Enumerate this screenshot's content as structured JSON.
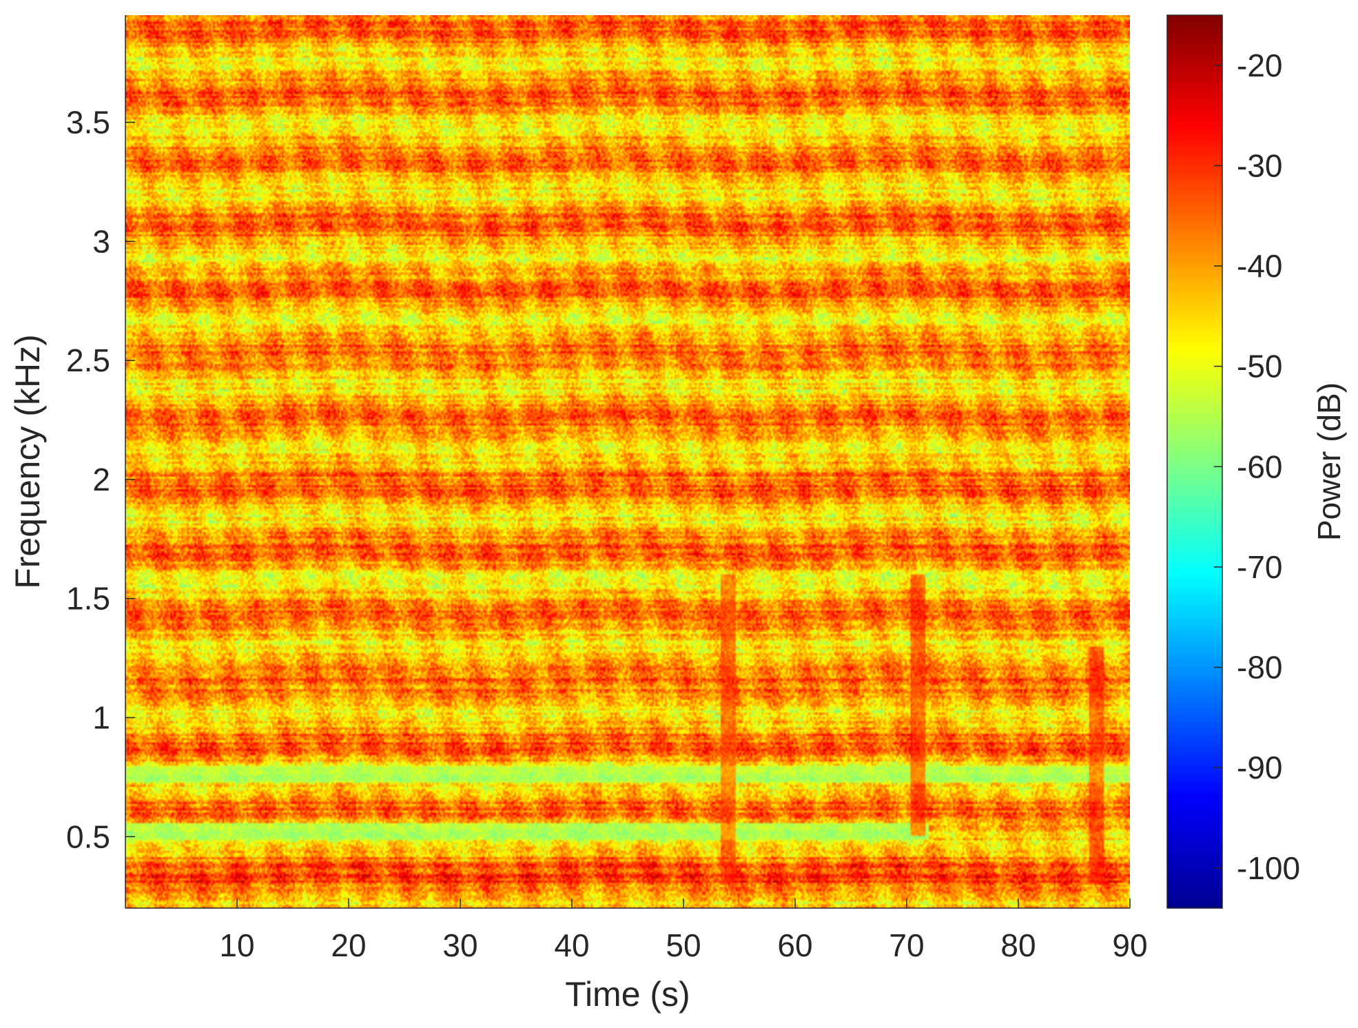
{
  "chart_data": {
    "type": "heatmap",
    "title": "",
    "xlabel": "Time (s)",
    "ylabel": "Frequency (kHz)",
    "xlim": [
      0,
      90
    ],
    "ylim": [
      0.2,
      3.95
    ],
    "xticks": [
      10,
      20,
      30,
      40,
      50,
      60,
      70,
      80,
      90
    ],
    "xtick_labels": [
      "10",
      "20",
      "30",
      "40",
      "50",
      "60",
      "70",
      "80",
      "90"
    ],
    "yticks": [
      0.5,
      1,
      1.5,
      2,
      2.5,
      3,
      3.5
    ],
    "ytick_labels": [
      "0.5",
      "1",
      "1.5",
      "2",
      "2.5",
      "3",
      "3.5"
    ],
    "colorbar": {
      "label": "Power (dB)",
      "colormap": "jet",
      "clim": [
        -104,
        -15
      ],
      "ticks": [
        -20,
        -30,
        -40,
        -50,
        -60,
        -70,
        -80,
        -90,
        -100
      ],
      "tick_labels": [
        "-20",
        "-30",
        "-40",
        "-50",
        "-60",
        "-70",
        "-80",
        "-90",
        "-100"
      ]
    },
    "z_typical_range_db": [
      -60,
      -30
    ],
    "features": [
      {
        "type": "horizontal_band",
        "freq_khz": 0.52,
        "power_db": -60,
        "x_range": [
          0,
          72
        ]
      },
      {
        "type": "horizontal_band",
        "freq_khz": 0.76,
        "power_db": -58,
        "x_range": [
          0,
          90
        ]
      },
      {
        "type": "strong_burst",
        "time_s": 54,
        "freq_khz_range": [
          0.3,
          1.6
        ],
        "power_db": -30
      },
      {
        "type": "strong_burst",
        "time_s": 71,
        "freq_khz_range": [
          0.5,
          1.6
        ],
        "power_db": -28
      },
      {
        "type": "strong_burst",
        "time_s": 87,
        "freq_khz_range": [
          0.3,
          1.3
        ],
        "power_db": -28
      }
    ]
  }
}
